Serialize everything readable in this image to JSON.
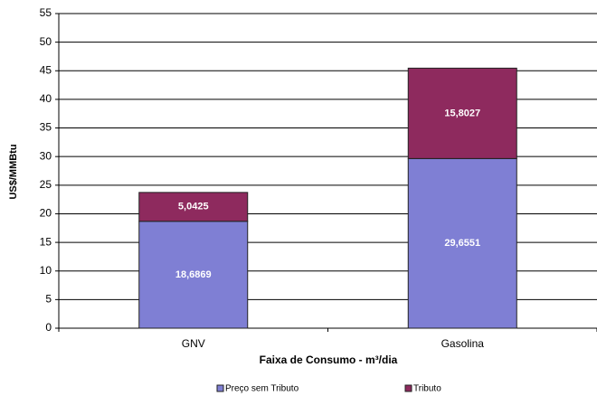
{
  "chart_data": {
    "type": "stacked_bar",
    "categories": [
      "GNV",
      "Gasolina"
    ],
    "series": [
      {
        "name": "Preço sem Tributo",
        "color": "#7f7fd4",
        "values": [
          18.6869,
          29.6551
        ],
        "value_labels": [
          "18,6869",
          "29,6551"
        ]
      },
      {
        "name": "Tributo",
        "color": "#8e2a5e",
        "values": [
          5.0425,
          15.8027
        ],
        "value_labels": [
          "5,0425",
          "15,8027"
        ]
      }
    ],
    "y_label": "US$/MMBtu",
    "x_label": "Faixa de Consumo - m³/dia",
    "ylim": [
      0,
      55
    ],
    "yticks": [
      0,
      5,
      10,
      15,
      20,
      25,
      30,
      35,
      40,
      45,
      50,
      55
    ],
    "grid": true,
    "legend": "bottom"
  }
}
